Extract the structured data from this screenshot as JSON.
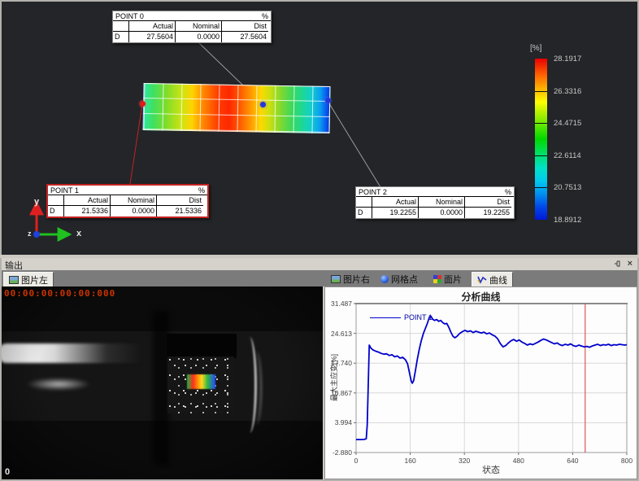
{
  "viewport": {
    "legend": {
      "unit": "[%]",
      "ticks": [
        "28.1917",
        "26.3316",
        "24.4715",
        "22.6114",
        "20.7513",
        "18.8912"
      ]
    },
    "axes": {
      "x": "x",
      "y": "y",
      "z": "z"
    },
    "points": [
      {
        "name": "POINT 0",
        "unit": "%",
        "row_label": "D",
        "cols": [
          "Actual",
          "Nominal",
          "Dist"
        ],
        "values": [
          "27.5604",
          "0.0000",
          "27.5604"
        ],
        "selected": false
      },
      {
        "name": "POINT 1",
        "unit": "%",
        "row_label": "D",
        "cols": [
          "Actual",
          "Nominal",
          "Dist"
        ],
        "values": [
          "21.5336",
          "0.0000",
          "21.5336"
        ],
        "selected": true
      },
      {
        "name": "POINT 2",
        "unit": "%",
        "row_label": "D",
        "cols": [
          "Actual",
          "Nominal",
          "Dist"
        ],
        "values": [
          "19.2255",
          "0.0000",
          "19.2255"
        ],
        "selected": false
      }
    ]
  },
  "output_panel": {
    "title": "输出",
    "left_tab": "图片左",
    "timestamp": "00:00:00:00:00:000",
    "frame_label": "0",
    "close": "×"
  },
  "right_panel": {
    "tabs": [
      "图片右",
      "网格点",
      "面片",
      "曲线"
    ],
    "active_tab": "曲线"
  },
  "chart_data": {
    "type": "line",
    "title": "分析曲线",
    "xlabel": "状态",
    "ylabel": "最大主应变[%]",
    "xlim": [
      0,
      800
    ],
    "ylim": [
      -2.88,
      31.487
    ],
    "xticks": [
      0,
      160,
      320,
      480,
      640,
      800
    ],
    "yticks": [
      31.487,
      24.613,
      17.74,
      10.867,
      3.994,
      -2.88
    ],
    "grid": true,
    "cursor_x": 677,
    "cursor_color": "#dd5555",
    "legend": {
      "position": "top-left",
      "entries": [
        "POINT 1"
      ]
    },
    "series": [
      {
        "name": "POINT 1",
        "color": "#0000cc",
        "x": [
          0,
          6,
          12,
          18,
          24,
          30,
          33,
          36,
          39,
          44,
          50,
          58,
          66,
          74,
          82,
          90,
          98,
          106,
          114,
          122,
          130,
          138,
          146,
          152,
          158,
          163,
          166,
          170,
          175,
          181,
          187,
          193,
          199,
          205,
          211,
          217,
          221,
          226,
          232,
          238,
          244,
          250,
          256,
          262,
          268,
          274,
          280,
          286,
          292,
          298,
          306,
          314,
          322,
          330,
          338,
          346,
          354,
          362,
          370,
          378,
          386,
          394,
          402,
          410,
          418,
          426,
          434,
          442,
          450,
          458,
          466,
          474,
          482,
          490,
          498,
          506,
          514,
          522,
          530,
          538,
          546,
          554,
          562,
          570,
          578,
          586,
          594,
          602,
          610,
          618,
          626,
          634,
          642,
          650,
          658,
          666,
          674,
          682,
          690,
          698,
          706,
          714,
          722,
          730,
          738,
          746,
          754,
          762,
          770,
          778,
          786,
          794,
          800
        ],
        "y": [
          0.1,
          0.12,
          0.1,
          0.13,
          0.15,
          0.3,
          3.5,
          13,
          21.9,
          21.2,
          20.8,
          20.5,
          20.3,
          20.0,
          19.8,
          19.9,
          19.5,
          19.7,
          19.2,
          19.4,
          18.9,
          19.1,
          18.5,
          17.6,
          15.4,
          13.6,
          13.1,
          13.7,
          15.8,
          18.6,
          21.0,
          23.0,
          24.6,
          25.8,
          27.0,
          28.4,
          28.6,
          27.9,
          27.6,
          27.8,
          27.4,
          27.6,
          27.1,
          26.8,
          26.9,
          26.0,
          24.9,
          24.0,
          23.6,
          23.9,
          24.6,
          25.0,
          25.3,
          25.0,
          25.2,
          24.8,
          25.1,
          24.9,
          24.7,
          24.9,
          24.5,
          24.7,
          24.3,
          24.0,
          23.4,
          22.3,
          21.5,
          21.8,
          22.4,
          22.9,
          23.2,
          22.8,
          23.1,
          22.6,
          22.3,
          21.9,
          22.2,
          22.0,
          22.3,
          22.6,
          23.0,
          23.3,
          23.1,
          22.8,
          22.5,
          22.2,
          22.4,
          22.0,
          21.8,
          22.1,
          21.9,
          22.2,
          21.8,
          21.6,
          21.9,
          21.7,
          21.5,
          21.6,
          21.4,
          21.7,
          21.9,
          22.1,
          21.8,
          22.0,
          21.9,
          22.1,
          21.8,
          22.0,
          21.9,
          22.1,
          22.0,
          21.9,
          22.0
        ]
      }
    ]
  }
}
